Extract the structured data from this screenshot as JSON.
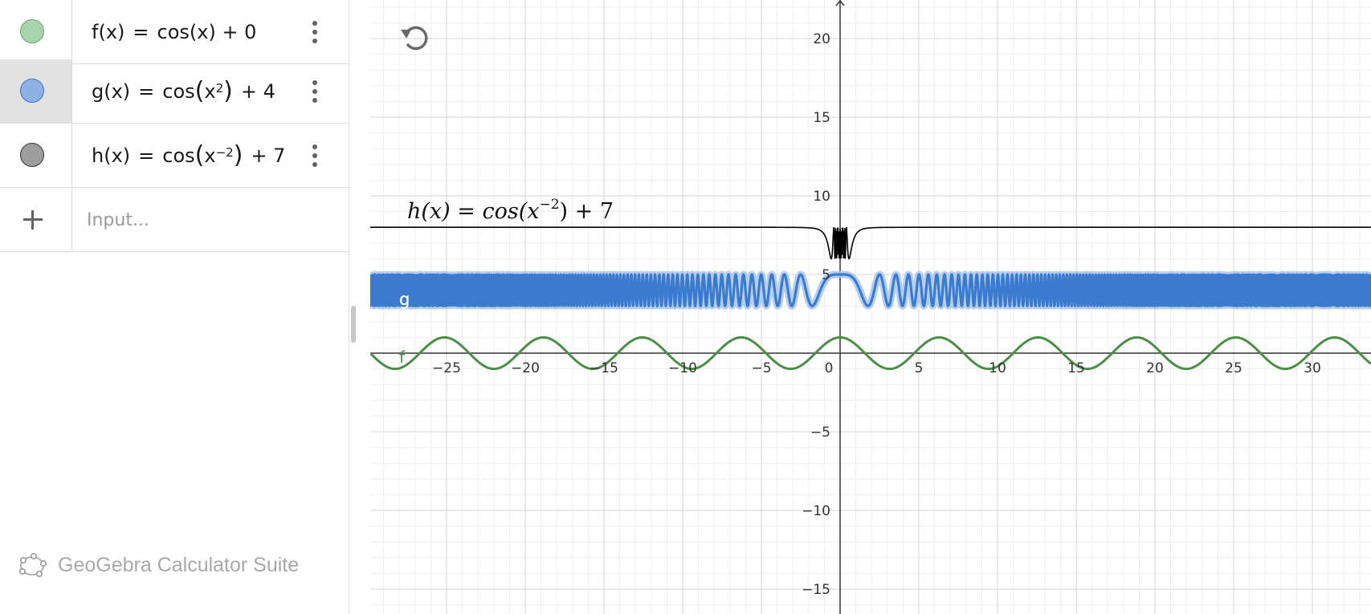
{
  "algebra": {
    "rows": [
      {
        "name": "f",
        "func": "cos(x) + 0",
        "color": "#93c79a",
        "stroke": "#6d9e72"
      },
      {
        "name": "g",
        "func_head": "cos",
        "arg_base": "x",
        "arg_exp": "2",
        "tail": "+ 4",
        "color": "#8aa6d6",
        "stroke": "#3d6fc4"
      },
      {
        "name": "h",
        "func_head": "cos",
        "arg_base": "x",
        "arg_exp": "−2",
        "tail": "+ 7",
        "color": "#9e9e9e",
        "stroke": "#333333"
      }
    ],
    "input_placeholder": "Input..."
  },
  "branding": {
    "label": "GeoGebra Calculator Suite"
  },
  "graph": {
    "x_ticks": [
      "−25",
      "−20",
      "−15",
      "−10",
      "−5",
      "0",
      "5",
      "10",
      "15",
      "20",
      "25",
      "30"
    ],
    "y_ticks_pos": [
      "20",
      "15",
      "10",
      "5"
    ],
    "y_ticks_neg": [
      "−5",
      "−10",
      "−15"
    ],
    "label_f": "f",
    "label_g": "g",
    "label_h_base": "h(x) = cos",
    "label_h_arg": "x",
    "label_h_exp": "−2",
    "label_h_tail": "+ 7",
    "colors": {
      "f": "#4a8f46",
      "g": "#3a7bd0",
      "g_glow": "#a9c6ee",
      "h": "#000000",
      "axis": "#333333",
      "grid_major": "#d6d6d6",
      "grid_minor": "#ededed"
    }
  }
}
